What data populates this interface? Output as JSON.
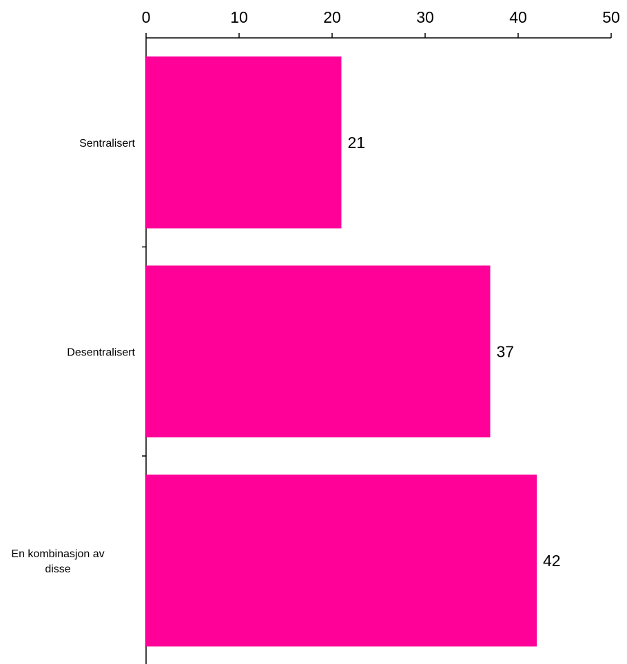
{
  "chart_data": {
    "type": "bar",
    "orientation": "horizontal",
    "categories": [
      "Sentralisert",
      "Desentralisert",
      "En kombinasjon av disse"
    ],
    "category_lines": [
      [
        "Sentralisert"
      ],
      [
        "Desentralisert"
      ],
      [
        "En kombinasjon av",
        "disse"
      ]
    ],
    "values": [
      21,
      37,
      42
    ],
    "data_labels": [
      "21",
      "37",
      "42"
    ],
    "xlim": [
      0,
      50
    ],
    "x_ticks": [
      0,
      10,
      20,
      30,
      40,
      50
    ],
    "x_tick_labels": [
      "0",
      "10",
      "20",
      "30",
      "40",
      "50"
    ],
    "x_axis_position": "top",
    "grid": false,
    "legend": "none",
    "bar_color": "#FF0099"
  }
}
